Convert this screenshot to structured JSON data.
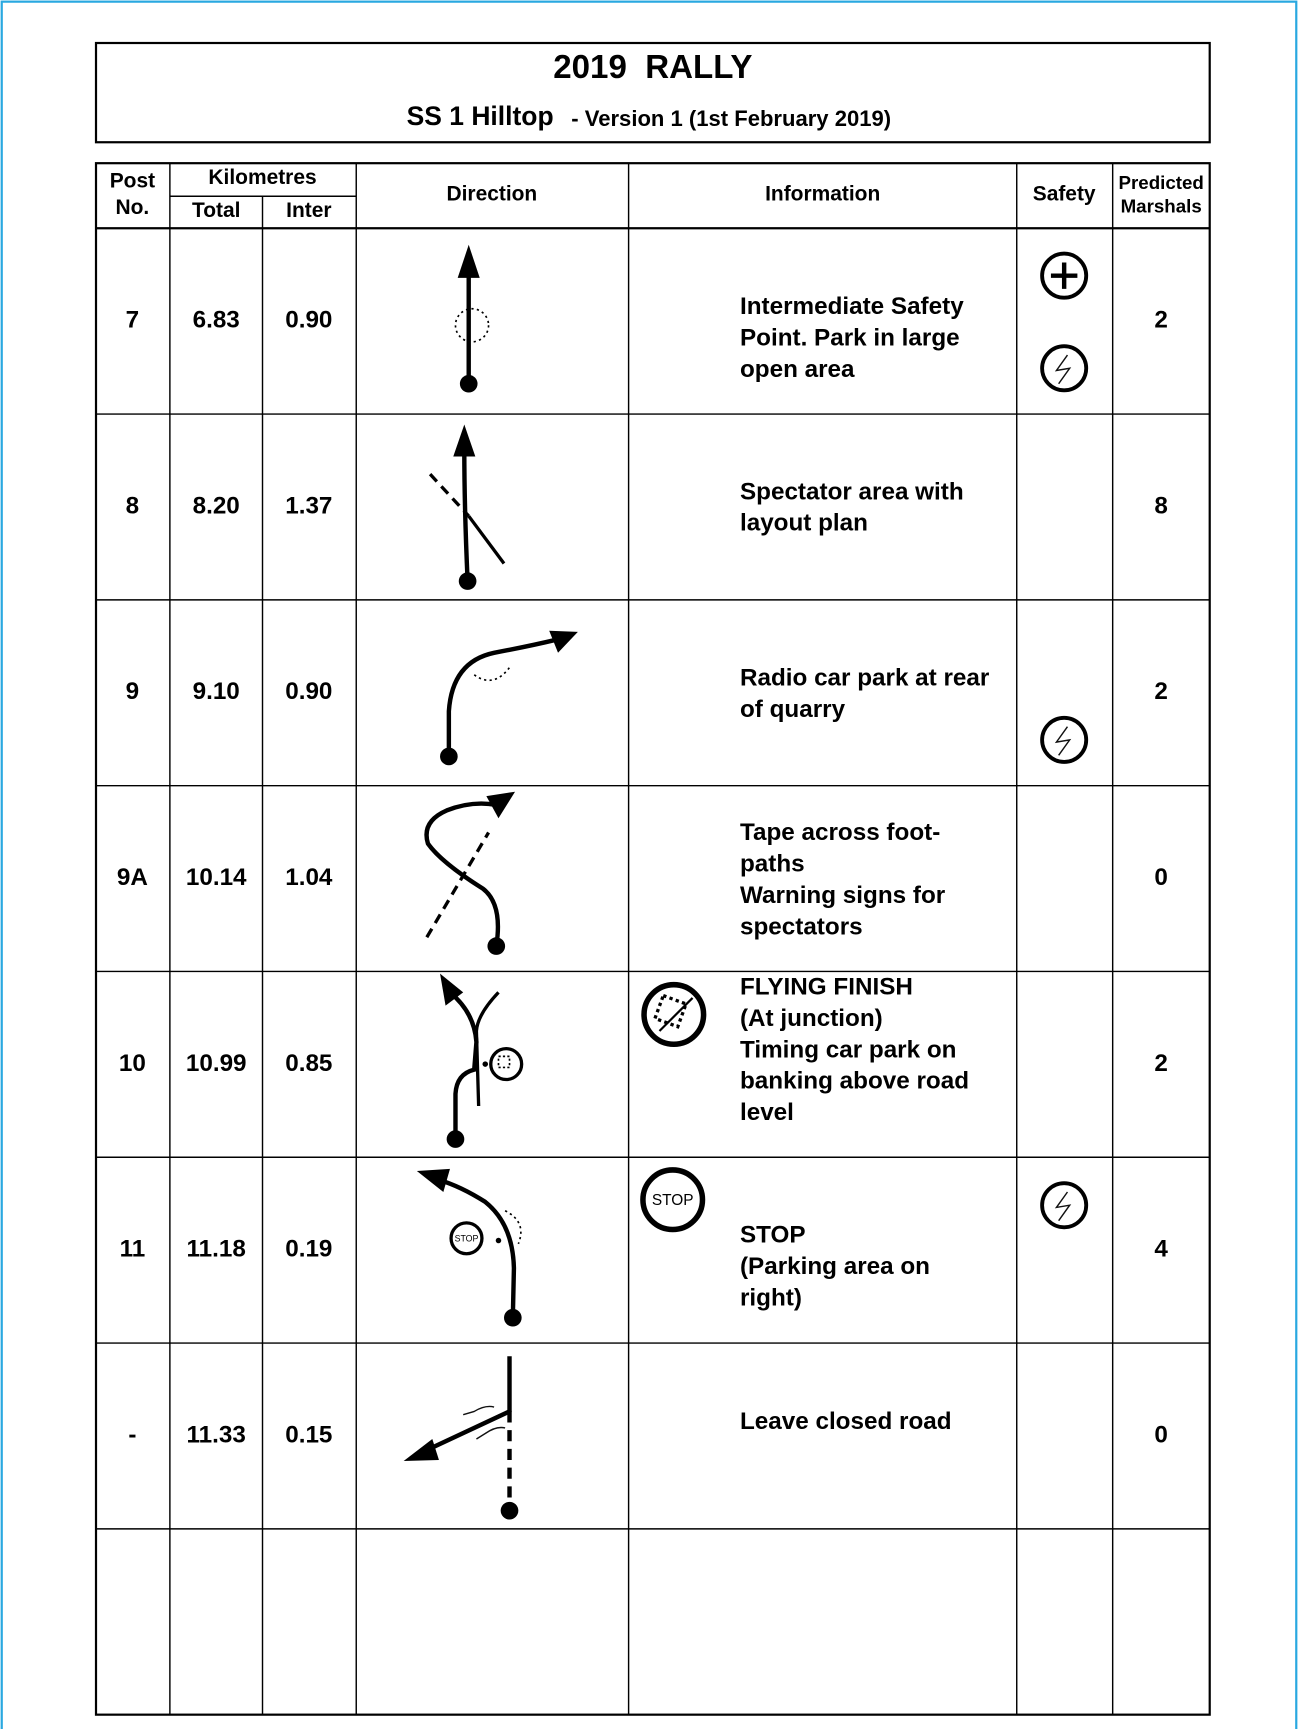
{
  "header": {
    "title": "2019  RALLY",
    "subtitle": "SS 1 Hilltop",
    "version": "- Version 1 (1st February 2019)"
  },
  "table": {
    "headers": {
      "post": [
        "Post",
        "No."
      ],
      "kilometres": "Kilometres",
      "total": "Total",
      "inter": "Inter",
      "direction": "Direction",
      "information": "Information",
      "safety": "Safety",
      "marshals": [
        "Predicted",
        "Marshals"
      ]
    },
    "rows": [
      {
        "post": "7",
        "total": "6.83",
        "inter": "0.90",
        "info": [
          "Intermediate Safety",
          "Point. Park in large",
          "open area"
        ],
        "marshals": "2"
      },
      {
        "post": "8",
        "total": "8.20",
        "inter": "1.37",
        "info": [
          "Spectator area with",
          "layout plan"
        ],
        "marshals": "8"
      },
      {
        "post": "9",
        "total": "9.10",
        "inter": "0.90",
        "info": [
          "Radio car park at rear",
          "of quarry"
        ],
        "marshals": "2"
      },
      {
        "post": "9A",
        "total": "10.14",
        "inter": "1.04",
        "info": [
          "Tape across foot-",
          "paths",
          "Warning signs for",
          "spectators"
        ],
        "marshals": "0"
      },
      {
        "post": "10",
        "total": "10.99",
        "inter": "0.85",
        "info": [
          "FLYING FINISH",
          "(At junction)",
          "Timing car park on",
          "banking above road",
          "level"
        ],
        "marshals": "2"
      },
      {
        "post": "11",
        "total": "11.18",
        "inter": "0.19",
        "info": [
          "STOP",
          "(Parking area on",
          "right)"
        ],
        "sign": "STOP",
        "marshals": "4"
      },
      {
        "post": "-",
        "total": "11.33",
        "inter": "0.15",
        "info": [
          "Leave closed road"
        ],
        "marshals": "0"
      }
    ]
  }
}
